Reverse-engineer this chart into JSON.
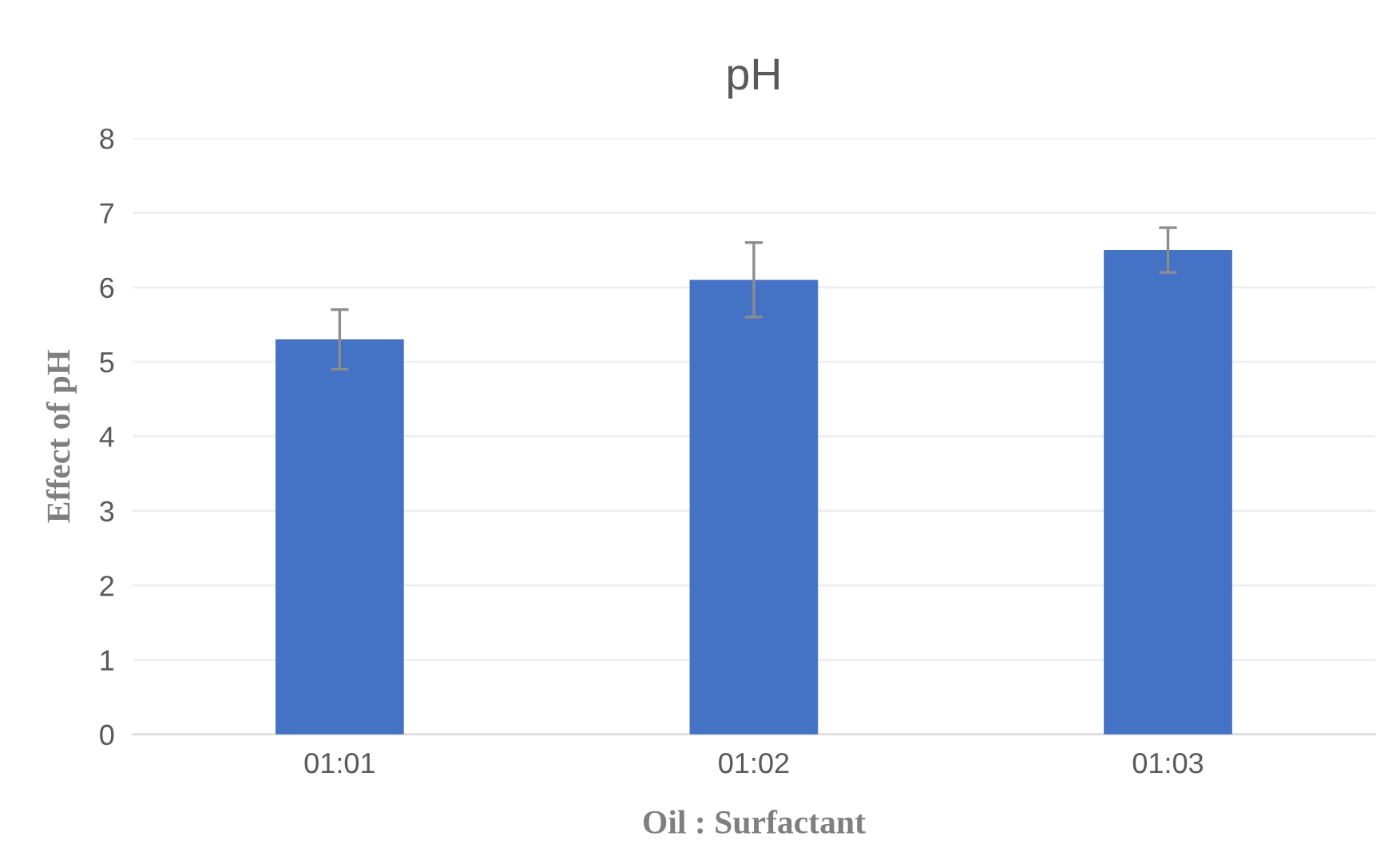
{
  "chart_data": {
    "type": "bar",
    "title": "pH",
    "xlabel": "Oil : Surfactant",
    "ylabel": "Effect of pH",
    "categories": [
      "01:01",
      "01:02",
      "01:03"
    ],
    "values": [
      5.3,
      6.1,
      6.5
    ],
    "errors": [
      0.4,
      0.5,
      0.3
    ],
    "color": "#4472c4",
    "ylim": [
      0,
      8
    ],
    "yticks": [
      0,
      1,
      2,
      3,
      4,
      5,
      6,
      7,
      8
    ],
    "grid": "y"
  }
}
